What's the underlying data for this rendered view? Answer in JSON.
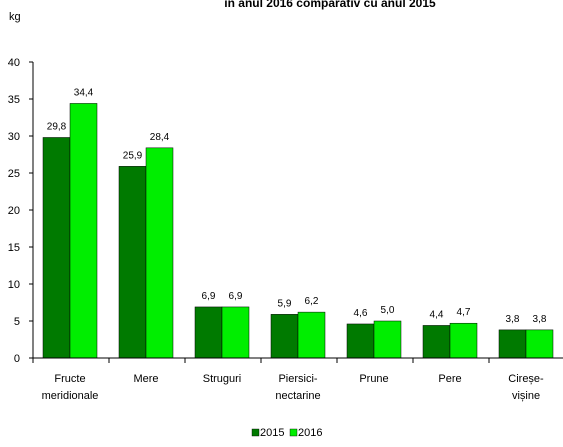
{
  "chart_data": {
    "type": "bar",
    "title": "în anul 2016 comparativ cu anul 2015",
    "ylabel": "kg",
    "ylim": [
      0,
      40
    ],
    "yticks": [
      0,
      5,
      10,
      15,
      20,
      25,
      30,
      35,
      40
    ],
    "grid": false,
    "legend_position": "bottom",
    "categories": [
      [
        "Fructe",
        "meridionale"
      ],
      [
        "Mere"
      ],
      [
        "Struguri"
      ],
      [
        "Piersici-",
        "nectarine"
      ],
      [
        "Prune"
      ],
      [
        "Pere"
      ],
      [
        "Cireșe-",
        "vișine"
      ]
    ],
    "series": [
      {
        "name": "2015",
        "color": "#007a00",
        "values": [
          29.8,
          25.9,
          6.9,
          5.9,
          4.6,
          4.4,
          3.8
        ],
        "labels": [
          "29,8",
          "25,9",
          "6,9",
          "5,9",
          "4,6",
          "4,4",
          "3,8"
        ]
      },
      {
        "name": "2016",
        "color": "#00ee00",
        "values": [
          34.4,
          28.4,
          6.9,
          6.2,
          5.0,
          4.7,
          3.8
        ],
        "labels": [
          "34,4",
          "28,4",
          "6,9",
          "6,2",
          "5,0",
          "4,7",
          "3,8"
        ]
      }
    ]
  }
}
